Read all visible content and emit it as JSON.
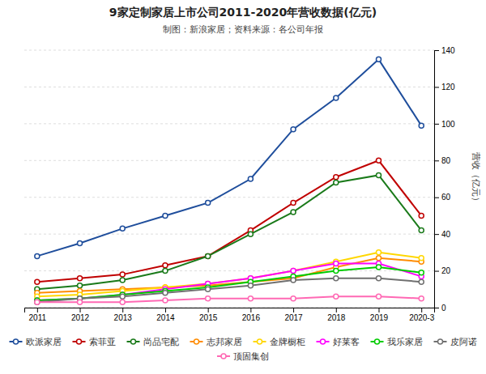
{
  "chart_data": {
    "type": "line",
    "title": "9家定制家居上市公司2011-2020年营收数据(亿元)",
    "subtitle": "制图：新浪家居；资料来源：各公司年报",
    "y_label": "营收（亿元）",
    "categories": [
      "2011",
      "2012",
      "2013",
      "2014",
      "2015",
      "2016",
      "2017",
      "2018",
      "2019",
      "2020-3"
    ],
    "series": [
      {
        "name": "欧派家居",
        "color": "#1f4e9c",
        "values": [
          28,
          35,
          43,
          50,
          57,
          70,
          97,
          114,
          135,
          99
        ]
      },
      {
        "name": "索菲亚",
        "color": "#c00000",
        "values": [
          14,
          16,
          18,
          23,
          28,
          42,
          57,
          71,
          80,
          50
        ]
      },
      {
        "name": "尚品宅配",
        "color": "#1a7a1a",
        "values": [
          10,
          12,
          15,
          20,
          28,
          40,
          52,
          68,
          72,
          42
        ]
      },
      {
        "name": "志邦家居",
        "color": "#ff8c00",
        "values": [
          8,
          9,
          10,
          11,
          12,
          14,
          16,
          22,
          27,
          25
        ]
      },
      {
        "name": "金牌橱柜",
        "color": "#ffd700",
        "values": [
          6,
          7,
          9,
          11,
          13,
          16,
          20,
          25,
          30,
          27
        ]
      },
      {
        "name": "好莱客",
        "color": "#ff00ff",
        "values": [
          4,
          5,
          7,
          10,
          13,
          16,
          20,
          24,
          24,
          17
        ]
      },
      {
        "name": "我乐家居",
        "color": "#00cc00",
        "values": [
          4,
          5,
          7,
          9,
          11,
          14,
          17,
          20,
          22,
          19
        ]
      },
      {
        "name": "皮阿诺",
        "color": "#707070",
        "values": [
          3,
          5,
          6,
          8,
          10,
          12,
          15,
          16,
          16,
          14
        ]
      },
      {
        "name": "顶固集创",
        "color": "#ff69b4",
        "values": [
          3,
          3,
          3,
          4,
          5,
          5,
          5,
          6,
          6,
          5
        ]
      }
    ],
    "ylim": [
      0,
      140
    ],
    "yticks": [
      0,
      20,
      40,
      60,
      80,
      100,
      120,
      140
    ],
    "grid": true,
    "legend": "bottom",
    "marker": "circle"
  }
}
